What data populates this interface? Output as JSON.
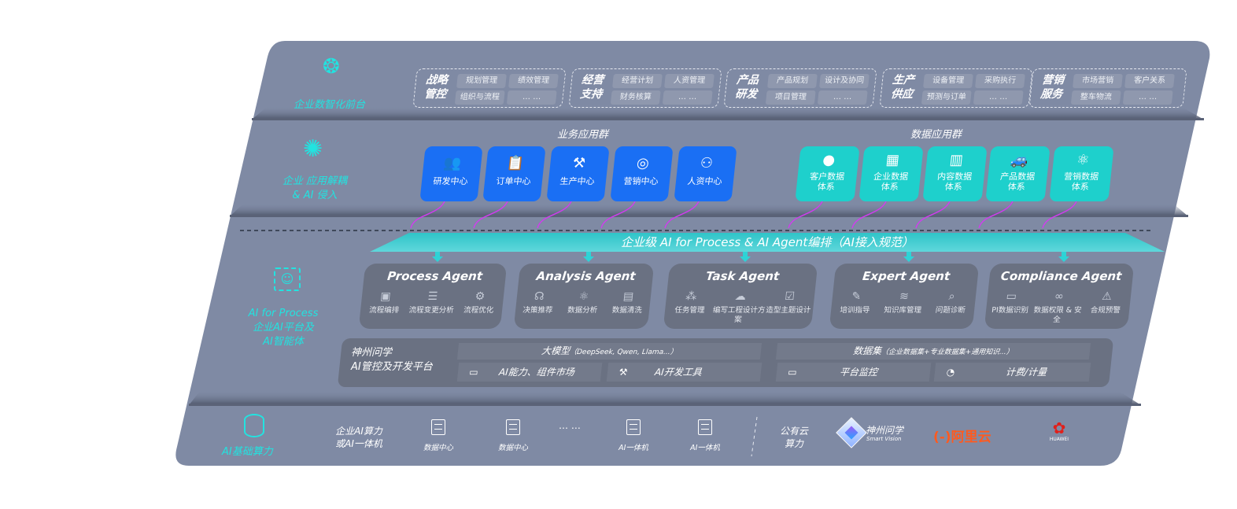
{
  "colors": {
    "panel": "#7f8aa4",
    "card_dark": "#6a7182",
    "business_blue": "#1a6ff4",
    "data_teal": "#1ed0cc",
    "accent_cyan": "#22e3e0",
    "connector_magenta": "#d23bf0",
    "aliyun_orange": "#ff5a1f",
    "huawei_red": "#e0201b"
  },
  "layers": {
    "front": {
      "icon": "brain-icon",
      "label": "企业数智化前台"
    },
    "apps": {
      "icon": "molecule-icon",
      "label1": "企业 应用解耦",
      "label2": "& AI 侵入"
    },
    "ai": {
      "icon": "face-scan-icon",
      "label1": "AI for Process",
      "label2": "企业AI平台及",
      "label3": "AI智能体"
    },
    "compute": {
      "icon": "database-icon",
      "label": "AI基础算力"
    }
  },
  "front_groups": [
    {
      "title1": "战略",
      "title2": "管控",
      "items": [
        "规划管理",
        "绩效管理",
        "组织与流程",
        "… …"
      ]
    },
    {
      "title1": "经营",
      "title2": "支持",
      "items": [
        "经营计划",
        "人资管理",
        "财务核算",
        "… …"
      ]
    },
    {
      "title1": "产品",
      "title2": "研发",
      "items": [
        "产品规划",
        "设计及协同",
        "项目管理",
        "… …"
      ]
    },
    {
      "title1": "生产",
      "title2": "供应",
      "items": [
        "设备管理",
        "采购执行",
        "预测与订单",
        "… …"
      ]
    },
    {
      "title1": "营销",
      "title2": "服务",
      "items": [
        "市场营销",
        "客户关系",
        "整车物流",
        "… …"
      ]
    }
  ],
  "business_apps": {
    "title": "业务应用群",
    "items": [
      {
        "label": "研发中心",
        "icon": "team-icon"
      },
      {
        "label": "订单中心",
        "icon": "clipboard-icon"
      },
      {
        "label": "生产中心",
        "icon": "factory-icon"
      },
      {
        "label": "营销中心",
        "icon": "target-icon"
      },
      {
        "label": "人资中心",
        "icon": "people-icon"
      }
    ]
  },
  "data_apps": {
    "title": "数据应用群",
    "items": [
      {
        "label1": "客户数据",
        "label2": "体系",
        "icon": "user-icon"
      },
      {
        "label1": "企业数据",
        "label2": "体系",
        "icon": "building-icon"
      },
      {
        "label1": "内容数据",
        "label2": "体系",
        "icon": "books-icon"
      },
      {
        "label1": "产品数据",
        "label2": "体系",
        "icon": "car-icon"
      },
      {
        "label1": "营销数据",
        "label2": "体系",
        "icon": "atom-icon"
      }
    ]
  },
  "orchestration": "企业级 AI for Process & AI Agent编排（AI接入规范）",
  "agents": [
    {
      "name": "Process Agent",
      "features": [
        {
          "label": "流程编排",
          "icon": "workflow-icon"
        },
        {
          "label": "流程变更分析",
          "icon": "list-icon"
        },
        {
          "label": "流程优化",
          "icon": "optimize-icon"
        }
      ]
    },
    {
      "name": "Analysis Agent",
      "features": [
        {
          "label": "决策推荐",
          "icon": "head-icon"
        },
        {
          "label": "数据分析",
          "icon": "atom-icon"
        },
        {
          "label": "数据清洗",
          "icon": "document-icon"
        }
      ]
    },
    {
      "name": "Task Agent",
      "features": [
        {
          "label": "任务管理",
          "icon": "network-icon"
        },
        {
          "label": "编写工程设计方案",
          "icon": "cloud-icon"
        },
        {
          "label": "造型主题设计",
          "icon": "checklist-icon"
        }
      ]
    },
    {
      "name": "Expert Agent",
      "features": [
        {
          "label": "培训指导",
          "icon": "pencil-ruler-icon"
        },
        {
          "label": "知识库管理",
          "icon": "layers-icon"
        },
        {
          "label": "问题诊断",
          "icon": "diagnosis-icon"
        }
      ]
    },
    {
      "name": "Compliance Agent",
      "features": [
        {
          "label": "PI数据识别",
          "icon": "id-card-icon"
        },
        {
          "label": "数据权限 & 安全",
          "icon": "link-icon"
        },
        {
          "label": "合规预警",
          "icon": "alert-icon"
        }
      ]
    }
  ],
  "platform": {
    "title1": "神州问学",
    "title2": "AI管控及开发平台",
    "model": "大模型",
    "model_note": "（DeepSeek, Qwen, Llama...）",
    "dataset": "数据集",
    "dataset_note": "（企业数据集+专业数据集+通用知识...）",
    "tools": [
      {
        "label": "AI能力、组件市场",
        "icon": "market-icon"
      },
      {
        "label": "AI开发工具",
        "icon": "dev-tool-icon"
      },
      {
        "label": "平台监控",
        "icon": "monitor-icon"
      },
      {
        "label": "计费/计量",
        "icon": "gauge-icon"
      }
    ]
  },
  "compute": {
    "title1": "企业AI算力",
    "title2": "或AI一体机",
    "servers": [
      "数据中心",
      "数据中心",
      "AI一体机",
      "AI一体机"
    ],
    "ellipsis": "… …",
    "public_title1": "公有云",
    "public_title2": "算力",
    "providers": [
      {
        "name": "神州问学",
        "sub": "Smart Vision"
      },
      {
        "name": "阿里云",
        "mark": "(-)"
      },
      {
        "name": "HUAWEI"
      }
    ]
  }
}
